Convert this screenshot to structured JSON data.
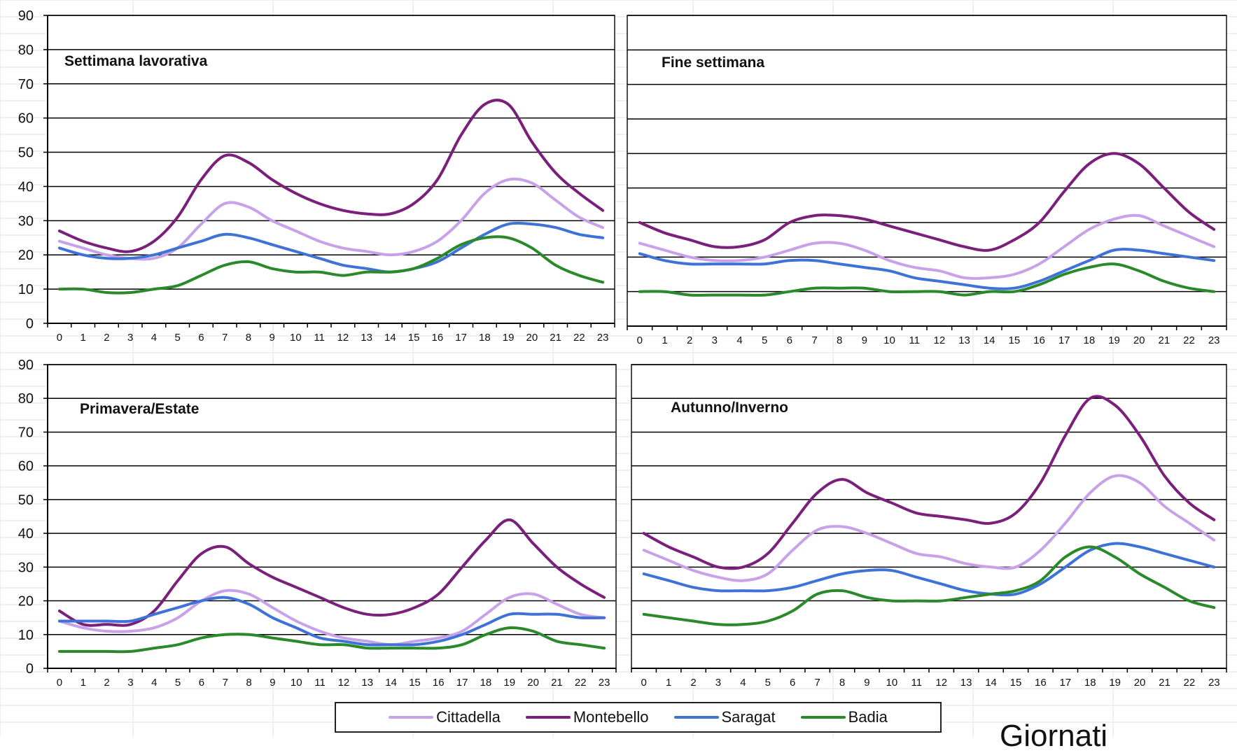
{
  "colors": {
    "Cittadella": "#c8a2e8",
    "Montebello": "#7a1f7a",
    "Saragat": "#3f72d6",
    "Badia": "#2a8a2a",
    "sheet_grid": "#dfe3ea",
    "frame": "#111111"
  },
  "legend": [
    {
      "name": "Cittadella",
      "color": "#c8a2e8"
    },
    {
      "name": "Montebello",
      "color": "#7a1f7a"
    },
    {
      "name": "Saragat",
      "color": "#3f72d6"
    },
    {
      "name": "Badia",
      "color": "#2a8a2a"
    }
  ],
  "overflow_text": "Giornati",
  "chart_data": [
    {
      "type": "line",
      "title": "Settimana lavorativa",
      "x": [
        0,
        1,
        2,
        3,
        4,
        5,
        6,
        7,
        8,
        9,
        10,
        11,
        12,
        13,
        14,
        15,
        16,
        17,
        18,
        19,
        20,
        21,
        22,
        23
      ],
      "ylim": [
        0,
        90
      ],
      "yticks": [
        0,
        10,
        20,
        30,
        40,
        50,
        60,
        70,
        80,
        90
      ],
      "grid": true,
      "series": [
        {
          "name": "Cittadella",
          "values": [
            24,
            22,
            20,
            19,
            19,
            22,
            29,
            35,
            34,
            30,
            27,
            24,
            22,
            21,
            20,
            21,
            24,
            30,
            38,
            42,
            41,
            36,
            31,
            28
          ]
        },
        {
          "name": "Montebello",
          "values": [
            27,
            24,
            22,
            21,
            24,
            31,
            42,
            49,
            47,
            42,
            38,
            35,
            33,
            32,
            32,
            35,
            42,
            55,
            64,
            64,
            53,
            44,
            38,
            33
          ]
        },
        {
          "name": "Saragat",
          "values": [
            22,
            20,
            19,
            19,
            20,
            22,
            24,
            26,
            25,
            23,
            21,
            19,
            17,
            16,
            15,
            16,
            18,
            22,
            26,
            29,
            29,
            28,
            26,
            25
          ]
        },
        {
          "name": "Badia",
          "values": [
            10,
            10,
            9,
            9,
            10,
            11,
            14,
            17,
            18,
            16,
            15,
            15,
            14,
            15,
            15,
            16,
            19,
            23,
            25,
            25,
            22,
            17,
            14,
            12
          ]
        }
      ]
    },
    {
      "type": "line",
      "title": "Fine settimana",
      "x": [
        0,
        1,
        2,
        3,
        4,
        5,
        6,
        7,
        8,
        9,
        10,
        11,
        12,
        13,
        14,
        15,
        16,
        17,
        18,
        19,
        20,
        21,
        22,
        23
      ],
      "ylim": [
        0,
        90
      ],
      "yticks": [
        0,
        10,
        20,
        30,
        40,
        50,
        60,
        70,
        80,
        90
      ],
      "grid": true,
      "series": [
        {
          "name": "Cittadella",
          "values": [
            24,
            22,
            20,
            19,
            19,
            20,
            22,
            24,
            24,
            22,
            19,
            17,
            16,
            14,
            14,
            15,
            18,
            23,
            28,
            31,
            32,
            29,
            26,
            23
          ]
        },
        {
          "name": "Montebello",
          "values": [
            30,
            27,
            25,
            23,
            23,
            25,
            30,
            32,
            32,
            31,
            29,
            27,
            25,
            23,
            22,
            25,
            30,
            39,
            47,
            50,
            47,
            40,
            33,
            28
          ]
        },
        {
          "name": "Saragat",
          "values": [
            21,
            19,
            18,
            18,
            18,
            18,
            19,
            19,
            18,
            17,
            16,
            14,
            13,
            12,
            11,
            11,
            13,
            16,
            19,
            22,
            22,
            21,
            20,
            19
          ]
        },
        {
          "name": "Badia",
          "values": [
            10,
            10,
            9,
            9,
            9,
            9,
            10,
            11,
            11,
            11,
            10,
            10,
            10,
            9,
            10,
            10,
            12,
            15,
            17,
            18,
            16,
            13,
            11,
            10
          ]
        }
      ]
    },
    {
      "type": "line",
      "title": "Primavera/Estate",
      "x": [
        0,
        1,
        2,
        3,
        4,
        5,
        6,
        7,
        8,
        9,
        10,
        11,
        12,
        13,
        14,
        15,
        16,
        17,
        18,
        19,
        20,
        21,
        22,
        23
      ],
      "ylim": [
        0,
        90
      ],
      "yticks": [
        0,
        10,
        20,
        30,
        40,
        50,
        60,
        70,
        80,
        90
      ],
      "grid": true,
      "series": [
        {
          "name": "Cittadella",
          "values": [
            14,
            12,
            11,
            11,
            12,
            15,
            20,
            23,
            22,
            18,
            14,
            11,
            9,
            8,
            7,
            8,
            9,
            11,
            16,
            21,
            22,
            19,
            16,
            15
          ]
        },
        {
          "name": "Montebello",
          "values": [
            17,
            13,
            13,
            13,
            17,
            26,
            34,
            36,
            31,
            27,
            24,
            21,
            18,
            16,
            16,
            18,
            22,
            30,
            38,
            44,
            37,
            30,
            25,
            21
          ]
        },
        {
          "name": "Saragat",
          "values": [
            14,
            14,
            14,
            14,
            16,
            18,
            20,
            21,
            19,
            15,
            12,
            9,
            8,
            7,
            7,
            7,
            8,
            10,
            13,
            16,
            16,
            16,
            15,
            15
          ]
        },
        {
          "name": "Badia",
          "values": [
            5,
            5,
            5,
            5,
            6,
            7,
            9,
            10,
            10,
            9,
            8,
            7,
            7,
            6,
            6,
            6,
            6,
            7,
            10,
            12,
            11,
            8,
            7,
            6
          ]
        }
      ]
    },
    {
      "type": "line",
      "title": "Autunno/Inverno",
      "x": [
        0,
        1,
        2,
        3,
        4,
        5,
        6,
        7,
        8,
        9,
        10,
        11,
        12,
        13,
        14,
        15,
        16,
        17,
        18,
        19,
        20,
        21,
        22,
        23
      ],
      "ylim": [
        0,
        90
      ],
      "yticks": [
        0,
        10,
        20,
        30,
        40,
        50,
        60,
        70,
        80,
        90
      ],
      "grid": true,
      "series": [
        {
          "name": "Cittadella",
          "values": [
            35,
            32,
            29,
            27,
            26,
            28,
            35,
            41,
            42,
            40,
            37,
            34,
            33,
            31,
            30,
            30,
            35,
            43,
            52,
            57,
            55,
            48,
            43,
            38
          ]
        },
        {
          "name": "Montebello",
          "values": [
            40,
            36,
            33,
            30,
            30,
            34,
            43,
            52,
            56,
            52,
            49,
            46,
            45,
            44,
            43,
            46,
            55,
            69,
            80,
            78,
            69,
            57,
            49,
            44
          ]
        },
        {
          "name": "Saragat",
          "values": [
            28,
            26,
            24,
            23,
            23,
            23,
            24,
            26,
            28,
            29,
            29,
            27,
            25,
            23,
            22,
            22,
            25,
            30,
            35,
            37,
            36,
            34,
            32,
            30
          ]
        },
        {
          "name": "Badia",
          "values": [
            16,
            15,
            14,
            13,
            13,
            14,
            17,
            22,
            23,
            21,
            20,
            20,
            20,
            21,
            22,
            23,
            26,
            33,
            36,
            33,
            28,
            24,
            20,
            18
          ]
        }
      ]
    }
  ]
}
